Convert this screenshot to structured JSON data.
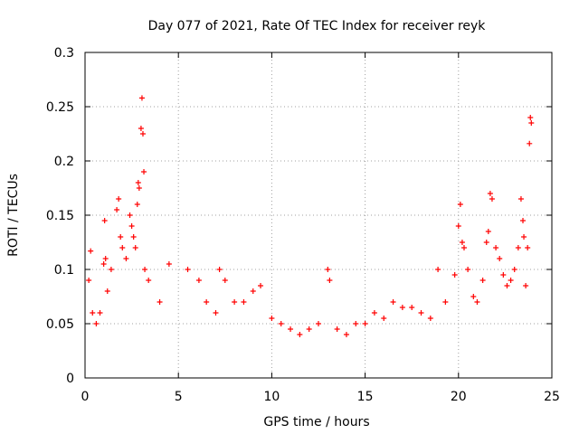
{
  "chart_data": {
    "type": "scatter",
    "title": "Day 077 of 2021, Rate Of TEC Index for receiver reyk",
    "xlabel": "GPS time / hours",
    "ylabel": "ROTI / TECUs",
    "xlim": [
      0,
      25
    ],
    "ylim": [
      0,
      0.3
    ],
    "x_ticks": [
      0,
      5,
      10,
      15,
      20,
      25
    ],
    "y_ticks": [
      0,
      0.05,
      0.1,
      0.15,
      0.2,
      0.25,
      0.3
    ],
    "x_tick_labels": [
      "0",
      "5",
      "10",
      "15",
      "20",
      "25"
    ],
    "y_tick_labels": [
      "0",
      "0.05",
      "0.1",
      "0.15",
      "0.2",
      "0.25",
      "0.3"
    ],
    "grid": true,
    "marker": "+",
    "series": [
      {
        "name": "ROTI",
        "color": "#ff0000",
        "points": [
          [
            0.2,
            0.09
          ],
          [
            0.3,
            0.117
          ],
          [
            0.4,
            0.06
          ],
          [
            0.6,
            0.05
          ],
          [
            0.8,
            0.06
          ],
          [
            1.0,
            0.105
          ],
          [
            1.05,
            0.145
          ],
          [
            1.1,
            0.11
          ],
          [
            1.2,
            0.08
          ],
          [
            1.4,
            0.1
          ],
          [
            1.7,
            0.155
          ],
          [
            1.8,
            0.165
          ],
          [
            1.9,
            0.13
          ],
          [
            2.0,
            0.12
          ],
          [
            2.2,
            0.11
          ],
          [
            2.4,
            0.15
          ],
          [
            2.5,
            0.14
          ],
          [
            2.6,
            0.13
          ],
          [
            2.7,
            0.12
          ],
          [
            2.8,
            0.16
          ],
          [
            2.85,
            0.18
          ],
          [
            2.9,
            0.175
          ],
          [
            3.0,
            0.23
          ],
          [
            3.05,
            0.258
          ],
          [
            3.1,
            0.225
          ],
          [
            3.15,
            0.19
          ],
          [
            3.2,
            0.1
          ],
          [
            3.4,
            0.09
          ],
          [
            4.0,
            0.07
          ],
          [
            4.5,
            0.105
          ],
          [
            5.5,
            0.1
          ],
          [
            6.1,
            0.09
          ],
          [
            6.5,
            0.07
          ],
          [
            7.0,
            0.06
          ],
          [
            7.2,
            0.1
          ],
          [
            7.5,
            0.09
          ],
          [
            8.0,
            0.07
          ],
          [
            8.5,
            0.07
          ],
          [
            9.0,
            0.08
          ],
          [
            9.4,
            0.085
          ],
          [
            10.0,
            0.055
          ],
          [
            10.5,
            0.05
          ],
          [
            11.0,
            0.045
          ],
          [
            11.5,
            0.04
          ],
          [
            12.0,
            0.045
          ],
          [
            12.5,
            0.05
          ],
          [
            13.0,
            0.1
          ],
          [
            13.1,
            0.09
          ],
          [
            13.5,
            0.045
          ],
          [
            14.0,
            0.04
          ],
          [
            14.5,
            0.05
          ],
          [
            15.0,
            0.05
          ],
          [
            15.5,
            0.06
          ],
          [
            16.0,
            0.055
          ],
          [
            16.5,
            0.07
          ],
          [
            17.0,
            0.065
          ],
          [
            17.5,
            0.065
          ],
          [
            18.0,
            0.06
          ],
          [
            18.5,
            0.055
          ],
          [
            18.9,
            0.1
          ],
          [
            19.3,
            0.07
          ],
          [
            19.8,
            0.095
          ],
          [
            20.0,
            0.14
          ],
          [
            20.1,
            0.16
          ],
          [
            20.2,
            0.125
          ],
          [
            20.3,
            0.12
          ],
          [
            20.5,
            0.1
          ],
          [
            20.8,
            0.075
          ],
          [
            21.0,
            0.07
          ],
          [
            21.3,
            0.09
          ],
          [
            21.5,
            0.125
          ],
          [
            21.6,
            0.135
          ],
          [
            21.7,
            0.17
          ],
          [
            21.8,
            0.165
          ],
          [
            22.0,
            0.12
          ],
          [
            22.2,
            0.11
          ],
          [
            22.4,
            0.095
          ],
          [
            22.6,
            0.085
          ],
          [
            22.8,
            0.09
          ],
          [
            23.0,
            0.1
          ],
          [
            23.2,
            0.12
          ],
          [
            23.35,
            0.165
          ],
          [
            23.45,
            0.145
          ],
          [
            23.5,
            0.13
          ],
          [
            23.6,
            0.085
          ],
          [
            23.7,
            0.12
          ],
          [
            23.8,
            0.216
          ],
          [
            23.85,
            0.24
          ],
          [
            23.9,
            0.235
          ]
        ]
      }
    ]
  }
}
